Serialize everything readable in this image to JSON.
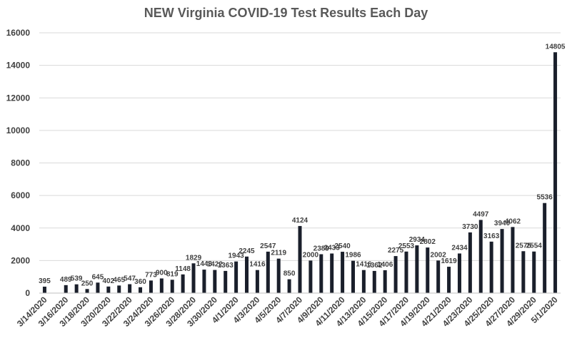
{
  "chart_data": {
    "type": "bar",
    "title": "NEW Virginia COVID-19 Test Results Each Day",
    "xlabel": "",
    "ylabel": "",
    "ylim": [
      0,
      16000
    ],
    "yticks": [
      "0",
      "2000",
      "4000",
      "6000",
      "8000",
      "10000",
      "12000",
      "14000",
      "16000"
    ],
    "grid": true,
    "legend": "none",
    "bar_color": "#1a1f2b",
    "grid_color": "#d9d9d9",
    "categories": [
      "3/14/2020",
      "3/15/2020",
      "3/16/2020",
      "3/17/2020",
      "3/18/2020",
      "3/19/2020",
      "3/20/2020",
      "3/21/2020",
      "3/22/2020",
      "3/23/2020",
      "3/24/2020",
      "3/25/2020",
      "3/26/2020",
      "3/27/2020",
      "3/28/2020",
      "3/29/2020",
      "3/30/2020",
      "3/31/2020",
      "4/1/2020",
      "4/2/2020",
      "4/3/2020",
      "4/4/2020",
      "4/5/2020",
      "4/6/2020",
      "4/7/2020",
      "4/8/2020",
      "4/9/2020",
      "4/10/2020",
      "4/11/2020",
      "4/12/2020",
      "4/13/2020",
      "4/14/2020",
      "4/15/2020",
      "4/16/2020",
      "4/17/2020",
      "4/18/2020",
      "4/19/2020",
      "4/20/2020",
      "4/21/2020",
      "4/22/2020",
      "4/23/2020",
      "4/24/2020",
      "4/25/2020",
      "4/26/2020",
      "4/27/2020",
      "4/28/2020",
      "4/29/2020",
      "4/30/2020",
      "5/1/2020"
    ],
    "values": [
      395,
      null,
      489,
      539,
      250,
      645,
      402,
      465,
      547,
      360,
      773,
      900,
      819,
      1148,
      1829,
      1443,
      1422,
      1363,
      1943,
      2245,
      1416,
      2547,
      2119,
      850,
      4124,
      2000,
      2389,
      2433,
      2540,
      1986,
      1416,
      1362,
      1406,
      2275,
      2553,
      2934,
      2802,
      2002,
      1619,
      2434,
      3730,
      4497,
      3163,
      3940,
      4062,
      2575,
      2554,
      5536,
      14805
    ],
    "xtick_labels": [
      "3/14/2020",
      "3/16/2020",
      "3/18/2020",
      "3/20/2020",
      "3/22/2020",
      "3/24/2020",
      "3/26/2020",
      "3/28/2020",
      "3/30/2020",
      "4/1/2020",
      "4/3/2020",
      "4/5/2020",
      "4/7/2020",
      "4/9/2020",
      "4/11/2020",
      "4/13/2020",
      "4/15/2020",
      "4/17/2020",
      "4/19/2020",
      "4/21/2020",
      "4/23/2020",
      "4/25/2020",
      "4/27/2020",
      "4/29/2020",
      "5/1/2020"
    ]
  }
}
